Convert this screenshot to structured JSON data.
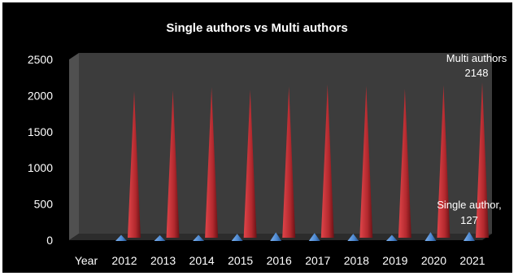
{
  "chart_data": {
    "type": "bar",
    "style": "3d-cone",
    "title": "Single authors vs Multi authors",
    "xlabel": "",
    "ylabel": "",
    "x_header": "Year",
    "categories": [
      "2012",
      "2013",
      "2014",
      "2015",
      "2016",
      "2017",
      "2018",
      "2019",
      "2020",
      "2021"
    ],
    "ylim": [
      0,
      2500
    ],
    "yticks": [
      "0",
      "500",
      "1000",
      "1500",
      "2000",
      "2500"
    ],
    "series": [
      {
        "name": "Single author",
        "color": "#4a86cf",
        "values": [
          85,
          80,
          85,
          100,
          120,
          110,
          100,
          85,
          122,
          127
        ]
      },
      {
        "name": "Multi authors",
        "color": "#b3292e",
        "values": [
          2030,
          2040,
          2080,
          2045,
          2090,
          2120,
          2100,
          2060,
          2110,
          2148
        ]
      }
    ],
    "data_labels": [
      {
        "series": "Multi authors",
        "category": "2021",
        "line1": "Multi authors",
        "line2": "2148"
      },
      {
        "series": "Single author",
        "category": "2021",
        "line1": "Single author,",
        "line2": "127"
      }
    ],
    "background": "#000000",
    "wall_color": "#3c3c3c",
    "floor_color": "#2c2c2c",
    "grid": false,
    "legend": "none"
  }
}
